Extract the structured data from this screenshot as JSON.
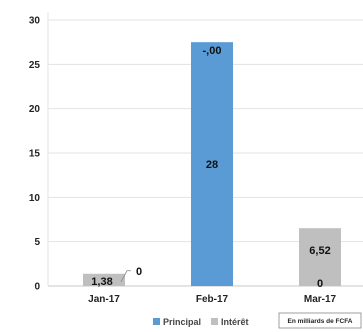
{
  "chart_data": {
    "type": "bar",
    "categories": [
      "Jan-17",
      "Feb-17",
      "Mar-17"
    ],
    "series": [
      {
        "name": "Principal",
        "values": [
          0,
          27.5,
          0
        ],
        "labels": [
          "0",
          "28",
          "0"
        ],
        "color": "#5b9bd5"
      },
      {
        "name": "Intérêt",
        "values": [
          1.38,
          0,
          6.52
        ],
        "labels": [
          "1,38",
          "-,00",
          "6,52"
        ],
        "color": "#bfbfbf"
      }
    ],
    "stacked": true,
    "ylim": [
      0,
      30
    ],
    "yticks": [
      0,
      5,
      10,
      15,
      20,
      25,
      30
    ],
    "grid": true,
    "legend_position": "bottom",
    "note": "En milliards de FCFA"
  }
}
